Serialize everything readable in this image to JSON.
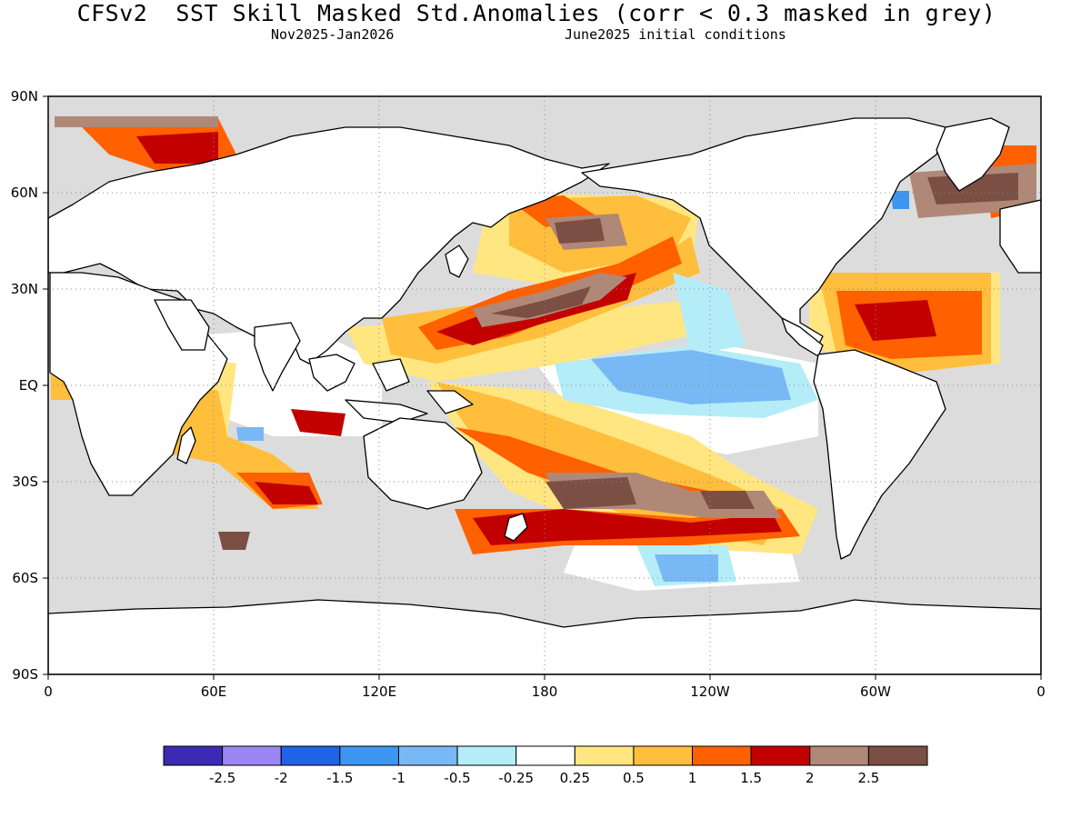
{
  "title": "CFSv2  SST Skill Masked Std.Anomalies (corr < 0.3 masked in grey)",
  "subtitle_left": "Nov2025-Jan2026",
  "subtitle_right": "June2025 initial conditions",
  "map": {
    "lat_labels": [
      "90N",
      "60N",
      "30N",
      "EQ",
      "30S",
      "60S",
      "90S"
    ],
    "lon_labels": [
      "0",
      "60E",
      "120E",
      "180",
      "120W",
      "60W",
      "0"
    ],
    "colors": {
      "mask": "#dcdcdc",
      "land": "#ffffff",
      "coast": "#000000"
    }
  },
  "colorbar": {
    "colors": [
      "#3b2bb4",
      "#9b86f5",
      "#1f63e6",
      "#3c96f0",
      "#78b9f5",
      "#b4edf8",
      "#ffffff",
      "#ffe680",
      "#ffbe3c",
      "#ff6000",
      "#c20000",
      "#b08878",
      "#7b4f44"
    ],
    "ticks": [
      "-2.5",
      "-2",
      "-1.5",
      "-1",
      "-0.5",
      "-0.25",
      "0.25",
      "0.5",
      "1",
      "1.5",
      "2",
      "2.5"
    ]
  }
}
